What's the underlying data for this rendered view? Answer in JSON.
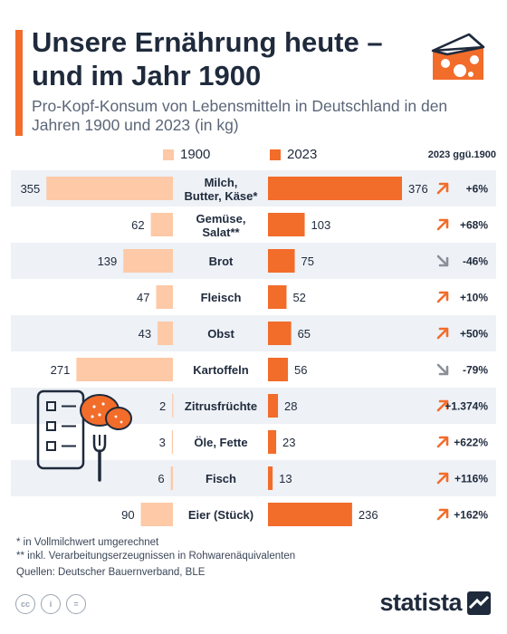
{
  "header": {
    "title": "Unsere Ernährung heute – und im Jahr 1900",
    "subtitle": "Pro-Kopf-Konsum von Lebensmitteln in Deutschland in den Jahren 1900 und 2023 (in kg)"
  },
  "legend": {
    "series_1900": "1900",
    "series_2023": "2023",
    "change_header": "2023 ggü.1900"
  },
  "colors": {
    "color_1900": "#fdc9a6",
    "color_2023": "#f26c2a",
    "row_shade": "#eef1f6",
    "text": "#1f2a3c",
    "arrow_up": "#f26c2a",
    "arrow_down": "#8a8f98"
  },
  "chart_data": {
    "type": "bar",
    "categories": [
      "Milch, Butter, Käse*",
      "Gemüse, Salat**",
      "Brot",
      "Fleisch",
      "Obst",
      "Kartoffeln",
      "Zitrusfrüchte",
      "Öle, Fette",
      "Fisch",
      "Eier (Stück)"
    ],
    "series": [
      {
        "name": "1900",
        "values": [
          355,
          62,
          139,
          47,
          43,
          271,
          2,
          3,
          6,
          90
        ]
      },
      {
        "name": "2023",
        "values": [
          376,
          103,
          75,
          52,
          65,
          56,
          28,
          23,
          13,
          236
        ]
      }
    ],
    "change_labels": [
      "+6%",
      "+68%",
      "-46%",
      "+10%",
      "+50%",
      "-79%",
      "+1.374%",
      "+622%",
      "+116%",
      "+162%"
    ],
    "change_direction": [
      "up",
      "up",
      "down",
      "up",
      "up",
      "down",
      "up",
      "up",
      "up",
      "up"
    ],
    "title": "Unsere Ernährung heute – und im Jahr 1900",
    "xlabel": "",
    "ylabel": ""
  },
  "footnotes": {
    "note_1": "*   in Vollmilchwert umgerechnet",
    "note_2": "** inkl. Verarbeitungserzeugnissen in Rohwarenäquivalenten",
    "sources": "Quellen: Deutscher Bauernverband, BLE"
  },
  "license": {
    "cc": "cc",
    "by": "i",
    "nd": "="
  },
  "logo": {
    "text": "statista"
  }
}
